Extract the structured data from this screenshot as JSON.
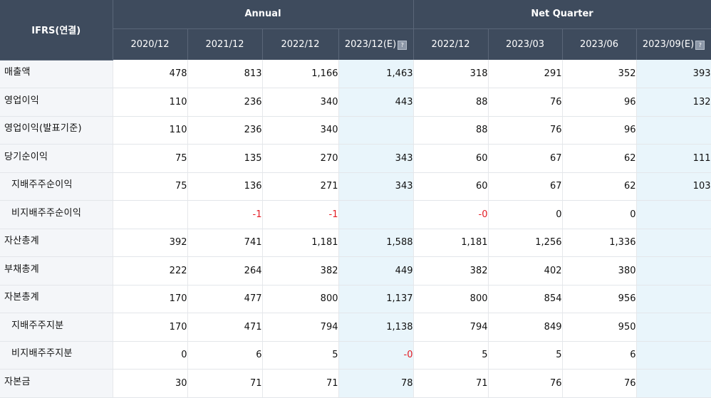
{
  "table": {
    "corner_label": "IFRS(연결)",
    "groups": [
      {
        "label": "Annual",
        "span": 4
      },
      {
        "label": "Net Quarter",
        "span": 4
      }
    ],
    "columns": [
      {
        "label": "2020/12",
        "estimate": false
      },
      {
        "label": "2021/12",
        "estimate": false
      },
      {
        "label": "2022/12",
        "estimate": false
      },
      {
        "label": "2023/12(E)",
        "estimate": true
      },
      {
        "label": "2022/12",
        "estimate": false
      },
      {
        "label": "2023/03",
        "estimate": false
      },
      {
        "label": "2023/06",
        "estimate": false
      },
      {
        "label": "2023/09(E)",
        "estimate": true
      }
    ],
    "estimate_icon": "estimate-info-icon",
    "rows": [
      {
        "label": "매출액",
        "sub": false,
        "values": [
          "478",
          "813",
          "1,166",
          "1,463",
          "318",
          "291",
          "352",
          "393"
        ]
      },
      {
        "label": "영업이익",
        "sub": false,
        "values": [
          "110",
          "236",
          "340",
          "443",
          "88",
          "76",
          "96",
          "132"
        ]
      },
      {
        "label": "영업이익(발표기준)",
        "sub": false,
        "values": [
          "110",
          "236",
          "340",
          "",
          "88",
          "76",
          "96",
          ""
        ]
      },
      {
        "label": "당기순이익",
        "sub": false,
        "values": [
          "75",
          "135",
          "270",
          "343",
          "60",
          "67",
          "62",
          "111"
        ]
      },
      {
        "label": "지배주주순이익",
        "sub": true,
        "values": [
          "75",
          "136",
          "271",
          "343",
          "60",
          "67",
          "62",
          "103"
        ]
      },
      {
        "label": "비지배주주순이익",
        "sub": true,
        "values": [
          "",
          "-1",
          "-1",
          "",
          "-0",
          "0",
          "0",
          ""
        ]
      },
      {
        "label": "자산총계",
        "sub": false,
        "values": [
          "392",
          "741",
          "1,181",
          "1,588",
          "1,181",
          "1,256",
          "1,336",
          ""
        ]
      },
      {
        "label": "부채총계",
        "sub": false,
        "values": [
          "222",
          "264",
          "382",
          "449",
          "382",
          "402",
          "380",
          ""
        ]
      },
      {
        "label": "자본총계",
        "sub": false,
        "values": [
          "170",
          "477",
          "800",
          "1,137",
          "800",
          "854",
          "956",
          ""
        ]
      },
      {
        "label": "지배주주지분",
        "sub": true,
        "values": [
          "170",
          "471",
          "794",
          "1,138",
          "794",
          "849",
          "950",
          ""
        ]
      },
      {
        "label": "비지배주주지분",
        "sub": true,
        "values": [
          "0",
          "6",
          "5",
          "-0",
          "5",
          "5",
          "6",
          ""
        ]
      },
      {
        "label": "자본금",
        "sub": false,
        "values": [
          "30",
          "71",
          "71",
          "78",
          "71",
          "76",
          "76",
          ""
        ]
      }
    ],
    "colors": {
      "header_bg": "#3e4b5d",
      "label_bg": "#f4f6f9",
      "estimate_bg": "#e9f5fb",
      "negative": "#e31b23"
    }
  }
}
